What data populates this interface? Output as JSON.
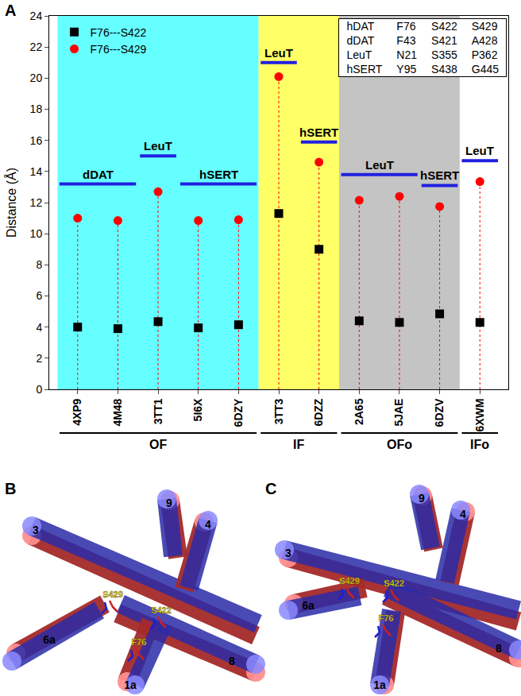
{
  "panel_label": "A",
  "chart_data": {
    "type": "scatter",
    "y_label": "Distance (Å)",
    "categories": [
      "4XP9",
      "4M48",
      "3TT1",
      "5I6X",
      "6DZY",
      "3TT3",
      "6DZZ",
      "2A65",
      "5JAE",
      "6DZV",
      "6XWM"
    ],
    "series": [
      {
        "name": "F76---S422",
        "color": "#000000",
        "marker": "square",
        "values": [
          4.0,
          3.9,
          4.35,
          3.95,
          4.15,
          11.3,
          9.0,
          4.4,
          4.3,
          4.85,
          4.3
        ]
      },
      {
        "name": "F76---S429",
        "color": "#ff0000",
        "marker": "circle",
        "line_style": "dotted",
        "values": [
          11.0,
          10.85,
          12.7,
          10.85,
          10.9,
          20.1,
          14.6,
          12.15,
          12.4,
          11.75,
          13.35
        ]
      }
    ],
    "ylim": [
      0,
      24
    ],
    "yticks": [
      0,
      2,
      4,
      6,
      8,
      10,
      12,
      14,
      16,
      18,
      20,
      22,
      24
    ],
    "grid": false,
    "legend": "upper left",
    "groups": [
      {
        "text": "OF",
        "from": "4XP9",
        "to": "6DZY",
        "color": "#66ffff"
      },
      {
        "text": "IF",
        "from": "3TT3",
        "to": "6DZZ",
        "color": "#ffff66"
      },
      {
        "text": "OFo",
        "from": "2A65",
        "to": "6DZV",
        "color": "#c4c4c4"
      },
      {
        "text": "IFo",
        "from": "6XWM",
        "to": "6XWM",
        "color": "#ffffff"
      }
    ],
    "annotations": [
      {
        "text": "dDAT",
        "from": "4XP9",
        "to": "4M48",
        "y": 13.2
      },
      {
        "text": "LeuT",
        "from": "3TT1",
        "to": "3TT1",
        "y": 15.0
      },
      {
        "text": "hSERT",
        "from": "5I6X",
        "to": "6DZY",
        "y": 13.2
      },
      {
        "text": "LeuT",
        "from": "3TT3",
        "to": "3TT3",
        "y": 21.0
      },
      {
        "text": "hSERT",
        "from": "6DZZ",
        "to": "6DZZ",
        "y": 15.9
      },
      {
        "text": "LeuT",
        "from": "2A65",
        "to": "5JAE",
        "y": 13.8
      },
      {
        "text": "hSERT",
        "from": "6DZV",
        "to": "6DZV",
        "y": 13.1
      },
      {
        "text": "LeuT",
        "from": "6XWM",
        "to": "6XWM",
        "y": 14.7
      }
    ]
  },
  "residue_table": {
    "rows": [
      [
        "hDAT",
        "F76",
        "S422",
        "S429"
      ],
      [
        "dDAT",
        "F43",
        "S421",
        "A428"
      ],
      [
        "LeuT",
        "N21",
        "S355",
        "P362"
      ],
      [
        "hSERT",
        "Y95",
        "S438",
        "G445"
      ]
    ]
  },
  "diagrams": [
    {
      "label": "B",
      "helices": [
        "3",
        "9",
        "4",
        "6a",
        "8",
        "1a"
      ],
      "residues": [
        "S429",
        "S422",
        "F76"
      ]
    },
    {
      "label": "C",
      "helices": [
        "3",
        "9",
        "4",
        "6a",
        "8",
        "1a"
      ],
      "residues": [
        "S429",
        "S422",
        "F76"
      ]
    }
  ]
}
